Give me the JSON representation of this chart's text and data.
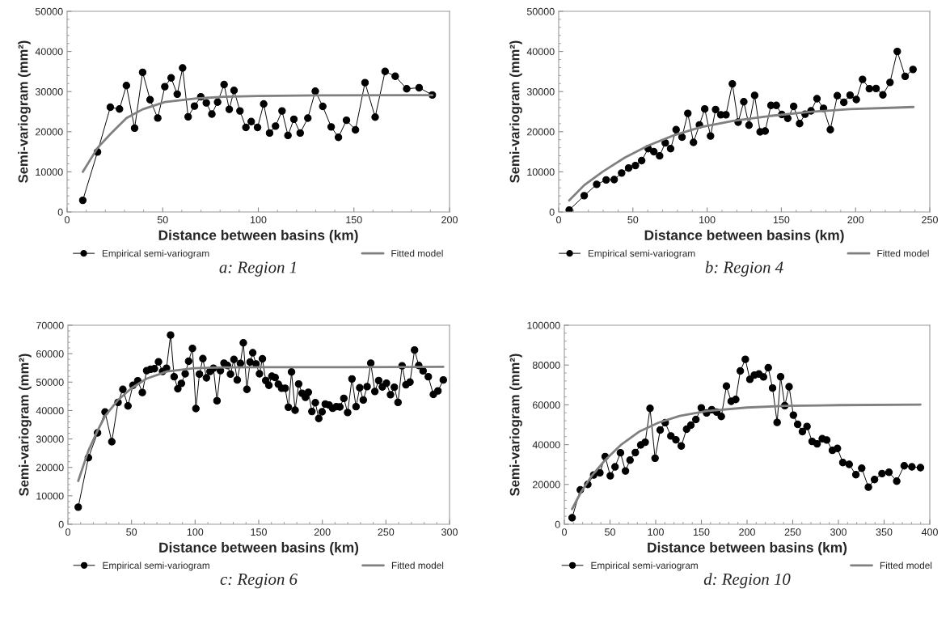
{
  "chart_data": [
    {
      "type": "line",
      "xlabel": "Distance between basins (km)",
      "ylabel": "Semi-variogram (mm²)",
      "annotations": [
        "a: Region 1"
      ],
      "xlim": [
        0,
        200
      ],
      "xticks": [
        0,
        50,
        100,
        150,
        200
      ],
      "ylim": [
        0,
        50000
      ],
      "yticks": [
        0,
        10000,
        20000,
        30000,
        40000,
        50000
      ],
      "grid": false,
      "legend": "bottom",
      "series": [
        {
          "name": "Empirical semi-variogram",
          "color": "#000000",
          "marker": "circle",
          "x": [
            8.2,
            15.9,
            22.6,
            27.4,
            31.0,
            35.3,
            39.5,
            43.4,
            47.4,
            51.1,
            54.4,
            57.6,
            60.4,
            63.3,
            66.6,
            69.9,
            72.8,
            75.7,
            78.7,
            82.1,
            84.8,
            87.3,
            90.4,
            93.5,
            96.3,
            99.6,
            102.8,
            105.9,
            109.0,
            112.4,
            115.5,
            118.6,
            121.9,
            125.9,
            129.8,
            133.7,
            138.1,
            141.9,
            146.1,
            150.8,
            155.8,
            161.1,
            166.3,
            171.6,
            177.6,
            184.1,
            191.0
          ],
          "values": [
            2900,
            14950,
            26100,
            25650,
            31500,
            20900,
            34800,
            27970,
            23400,
            31230,
            33420,
            29370,
            35880,
            23720,
            26380,
            28700,
            27180,
            24390,
            27380,
            31760,
            25580,
            30300,
            25180,
            21060,
            22520,
            21060,
            26910,
            19670,
            21400,
            25180,
            19070,
            23120,
            19670,
            23390,
            30100,
            26310,
            21200,
            18600,
            22860,
            20470,
            32230,
            23650,
            35020,
            33820,
            30700,
            30960,
            29170
          ]
        },
        {
          "name": "Fitted model",
          "color": "#808080",
          "marker": "none",
          "x": [
            8.2,
            15.9,
            22.6,
            31.0,
            39.5,
            51.1,
            67.7,
            82.1,
            100.1,
            131.2,
            191.0
          ],
          "values": [
            10000,
            15950,
            19400,
            23400,
            25580,
            27380,
            28300,
            28700,
            28900,
            29040,
            29100
          ]
        }
      ]
    },
    {
      "type": "line",
      "xlabel": "Distance between basins (km)",
      "ylabel": "Semi-variogram (mm²)",
      "annotations": [
        "b: Region 4"
      ],
      "xlim": [
        0,
        250
      ],
      "xticks": [
        0,
        50,
        100,
        150,
        200,
        250
      ],
      "ylim": [
        0,
        50000
      ],
      "yticks": [
        0,
        10000,
        20000,
        30000,
        40000,
        50000
      ],
      "grid": false,
      "legend": "bottom",
      "series": [
        {
          "name": "Empirical semi-variogram",
          "color": "#000000",
          "marker": "circle",
          "x": [
            7.1,
            17.2,
            25.6,
            32.0,
            37.4,
            42.4,
            47.1,
            51.7,
            55.9,
            60.3,
            64.1,
            68.0,
            71.8,
            75.4,
            79.1,
            83.1,
            87.0,
            90.8,
            94.8,
            98.4,
            102.3,
            105.7,
            109.2,
            112.7,
            117.0,
            120.9,
            124.7,
            128.2,
            132.0,
            135.7,
            139.1,
            143.0,
            146.6,
            150.3,
            154.3,
            158.3,
            162.3,
            166.0,
            170.0,
            174.0,
            178.4,
            183.0,
            187.7,
            192.1,
            196.3,
            200.5,
            204.7,
            209.3,
            213.8,
            218.4,
            223.2,
            228.1,
            233.4,
            238.7
          ],
          "values": [
            480,
            4060,
            6880,
            7990,
            8060,
            9710,
            10950,
            11570,
            12810,
            15770,
            15010,
            13980,
            17210,
            15770,
            20520,
            18660,
            24580,
            17350,
            21690,
            25680,
            18930,
            25540,
            24230,
            24230,
            31940,
            22380,
            27470,
            21620,
            29050,
            19970,
            20170,
            26570,
            26570,
            24300,
            23340,
            26300,
            22030,
            24370,
            25200,
            28230,
            25820,
            20520,
            28980,
            27330,
            29120,
            28020,
            33050,
            30710,
            30770,
            29190,
            32290,
            40000,
            33800,
            35520
          ]
        },
        {
          "name": "Fitted model",
          "color": "#808080",
          "marker": "none",
          "x": [
            7.1,
            17.2,
            29.9,
            44.6,
            60.3,
            77.4,
            95.7,
            117.6,
            141.3,
            168.7,
            196.1,
            223.5,
            239.0
          ],
          "values": [
            2890,
            6680,
            10120,
            13560,
            16520,
            19070,
            21140,
            22720,
            23890,
            24920,
            25610,
            25960,
            26160
          ]
        }
      ]
    },
    {
      "type": "line",
      "xlabel": "Distance between basins (km)",
      "ylabel": "Semi-variogram (mm²)",
      "annotations": [
        "c: Region 6"
      ],
      "xlim": [
        0,
        300
      ],
      "xticks": [
        0,
        50,
        100,
        150,
        200,
        250,
        300
      ],
      "ylim": [
        0,
        70000
      ],
      "yticks": [
        0,
        10000,
        20000,
        30000,
        40000,
        50000,
        60000,
        70000
      ],
      "grid": false,
      "legend": "bottom",
      "series": [
        {
          "name": "Empirical semi-variogram",
          "color": "#000000",
          "marker": "circle",
          "x": [
            8.1,
            16.1,
            23.3,
            29.2,
            34.5,
            39.4,
            43.2,
            47.2,
            51.1,
            54.9,
            58.5,
            61.9,
            65.0,
            68.0,
            71.2,
            74.4,
            77.5,
            80.7,
            83.5,
            86.4,
            89.2,
            92.2,
            94.9,
            97.9,
            100.6,
            103.4,
            106.1,
            108.9,
            111.7,
            114.4,
            117.2,
            119.9,
            122.7,
            125.4,
            127.8,
            130.5,
            133.1,
            135.6,
            137.9,
            140.7,
            143.2,
            145.3,
            147.9,
            150.6,
            152.9,
            155.5,
            158.0,
            160.3,
            162.9,
            165.4,
            168.0,
            170.8,
            173.3,
            175.8,
            178.6,
            181.4,
            184.1,
            186.7,
            189.0,
            191.8,
            194.5,
            197.2,
            199.8,
            202.3,
            205.3,
            208.1,
            211.0,
            213.8,
            216.9,
            219.9,
            223.3,
            226.5,
            229.4,
            232.2,
            235.2,
            238.1,
            241.3,
            244.3,
            247.2,
            250.4,
            253.6,
            256.6,
            259.5,
            262.7,
            265.7,
            268.9,
            272.5,
            275.8,
            279.2,
            283.3,
            287.3,
            290.9,
            295.1
          ],
          "values": [
            6020,
            23400,
            32140,
            39470,
            29040,
            42860,
            47460,
            41630,
            48870,
            50470,
            46330,
            54040,
            54510,
            54700,
            57140,
            53760,
            54890,
            66540,
            51880,
            47650,
            49530,
            52910,
            57330,
            61840,
            40700,
            52820,
            58270,
            51500,
            53760,
            54890,
            43420,
            54040,
            56670,
            55830,
            52820,
            57990,
            50750,
            56580,
            63820,
            47460,
            57050,
            60340,
            56390,
            52910,
            58180,
            50560,
            48870,
            52070,
            51600,
            49250,
            47840,
            47840,
            41170,
            53570,
            40130,
            49340,
            46050,
            44640,
            46430,
            39660,
            42760,
            37220,
            39570,
            42290,
            41920,
            40790,
            41350,
            41260,
            44270,
            39290,
            51130,
            41350,
            48030,
            43700,
            48400,
            56670,
            46710,
            50560,
            48310,
            49620,
            45580,
            48210,
            42860,
            55730,
            49060,
            50000,
            61280,
            55830,
            53950,
            51880,
            45680,
            46900,
            50750
          ]
        },
        {
          "name": "Fitted model",
          "color": "#808080",
          "marker": "none",
          "x": [
            8.1,
            16.1,
            23.3,
            29.2,
            39.4,
            49.6,
            61.9,
            78.0,
            99.2,
            122.5,
            154.2,
            217.8,
            295.1
          ],
          "values": [
            15230,
            25850,
            32890,
            38060,
            43700,
            47740,
            51220,
            53760,
            54890,
            55170,
            55260,
            55260,
            55360
          ]
        }
      ]
    },
    {
      "type": "line",
      "xlabel": "Distance between basins (km)",
      "ylabel": "Semi-variogram (mm²)",
      "annotations": [
        "d: Region 10"
      ],
      "xlim": [
        0,
        400
      ],
      "xticks": [
        0,
        50,
        100,
        150,
        200,
        250,
        300,
        350,
        400
      ],
      "ylim": [
        0,
        100000
      ],
      "yticks": [
        0,
        20000,
        40000,
        60000,
        80000,
        100000
      ],
      "grid": false,
      "legend": "bottom",
      "series": [
        {
          "name": "Empirical semi-variogram",
          "color": "#000000",
          "marker": "circle",
          "x": [
            8.5,
            17.5,
            25.7,
            32.1,
            38.9,
            44.7,
            50.3,
            55.5,
            61.4,
            66.9,
            71.9,
            77.7,
            83.6,
            88.5,
            93.8,
            99.3,
            104.9,
            110.4,
            116.6,
            122.1,
            128.0,
            133.8,
            138.5,
            144.0,
            149.9,
            155.7,
            161.3,
            166.8,
            171.8,
            177.4,
            182.6,
            187.6,
            192.6,
            198.1,
            203.1,
            208.0,
            213.0,
            218.0,
            223.2,
            227.9,
            232.9,
            236.7,
            241.3,
            246.0,
            250.7,
            255.4,
            260.6,
            265.6,
            271.2,
            276.7,
            282.3,
            287.2,
            293.4,
            298.9,
            304.8,
            311.8,
            319.1,
            325.5,
            332.8,
            339.5,
            347.7,
            355.3,
            363.8,
            372.0,
            380.4,
            389.8
          ],
          "values": [
            3270,
            17280,
            20000,
            24760,
            25850,
            34010,
            24350,
            28840,
            35920,
            26800,
            32240,
            36050,
            39860,
            41220,
            58230,
            33200,
            47350,
            51020,
            44350,
            42450,
            39320,
            47760,
            49800,
            52650,
            58500,
            55920,
            57550,
            56330,
            54150,
            69390,
            61770,
            62720,
            77010,
            82860,
            72790,
            74970,
            75510,
            74010,
            78640,
            68440,
            51160,
            74150,
            59590,
            69120,
            54830,
            50200,
            46530,
            49120,
            41630,
            40410,
            42990,
            42310,
            37140,
            38100,
            31020,
            30070,
            24900,
            28160,
            18640,
            22450,
            25440,
            26120,
            21630,
            29390,
            28840,
            28440
          ]
        },
        {
          "name": "Fitted model",
          "color": "#808080",
          "marker": "none",
          "x": [
            8.5,
            18.1,
            29.8,
            44.4,
            61.9,
            82.4,
            102.9,
            126.2,
            155.4,
            199.3,
            243.1,
            301.5,
            389.8
          ],
          "values": [
            7620,
            16050,
            24220,
            32110,
            39860,
            46670,
            51020,
            54420,
            56870,
            58640,
            59460,
            59860,
            60140
          ]
        }
      ]
    }
  ]
}
